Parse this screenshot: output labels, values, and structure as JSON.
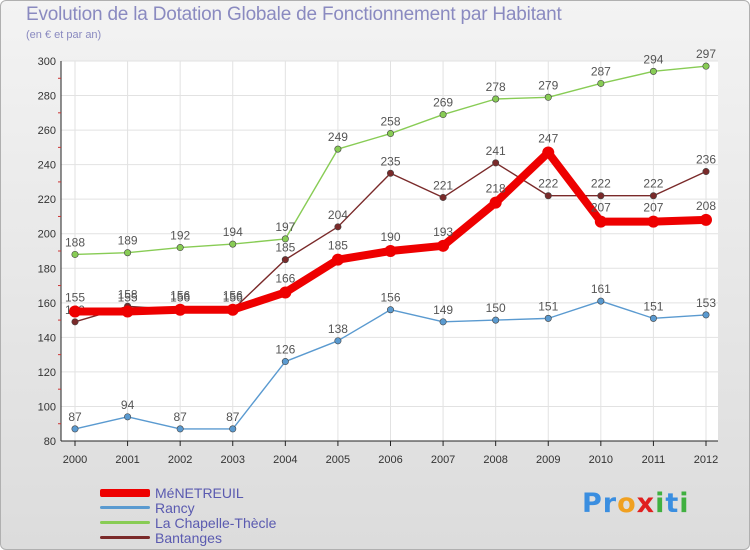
{
  "chart_data": {
    "type": "line",
    "title": "Evolution de la Dotation Globale de Fonctionnement par Habitant",
    "subtitle": "(en € et par an)",
    "xlabel": "",
    "ylabel": "",
    "categories": [
      "2000",
      "2001",
      "2002",
      "2003",
      "2004",
      "2005",
      "2006",
      "2007",
      "2008",
      "2009",
      "2010",
      "2011",
      "2012"
    ],
    "ylim": [
      80,
      300
    ],
    "yticks": [
      80,
      100,
      120,
      140,
      160,
      180,
      200,
      220,
      240,
      260,
      280,
      300
    ],
    "grid": true,
    "legend_position": "bottom-left",
    "series": [
      {
        "name": "La Chapelle-Thècle",
        "color": "#88cc55",
        "values": [
          188,
          189,
          192,
          194,
          197,
          249,
          258,
          269,
          278,
          279,
          287,
          294,
          297
        ]
      },
      {
        "name": "Bantanges",
        "color": "#7a2a2a",
        "values": [
          149,
          158,
          156,
          156,
          185,
          204,
          235,
          221,
          241,
          222,
          222,
          222,
          236
        ]
      },
      {
        "name": "Rancy",
        "color": "#5a9ad0",
        "values": [
          87,
          94,
          87,
          87,
          126,
          138,
          156,
          149,
          150,
          151,
          161,
          151,
          153
        ]
      },
      {
        "name": "MéNETREUIL",
        "color": "#ee0000",
        "values": [
          155,
          155,
          156,
          156,
          166,
          185,
          190,
          193,
          218,
          247,
          207,
          207,
          208
        ]
      }
    ]
  },
  "legend": {
    "items": [
      {
        "label": "MéNETREUIL",
        "color": "#ee0000"
      },
      {
        "label": "Rancy",
        "color": "#5a9ad0"
      },
      {
        "label": "La Chapelle-Thècle",
        "color": "#88cc55"
      },
      {
        "label": "Bantanges",
        "color": "#7a2a2a"
      }
    ]
  },
  "logo": {
    "parts": [
      {
        "text": "Pr",
        "color": "#3a8ee0"
      },
      {
        "text": "o",
        "color": "#f0a020"
      },
      {
        "text": "x",
        "color": "#e02020"
      },
      {
        "text": "i",
        "color": "#40b040"
      },
      {
        "text": "t",
        "color": "#3a8ee0"
      },
      {
        "text": "i",
        "color": "#40b040"
      }
    ]
  }
}
